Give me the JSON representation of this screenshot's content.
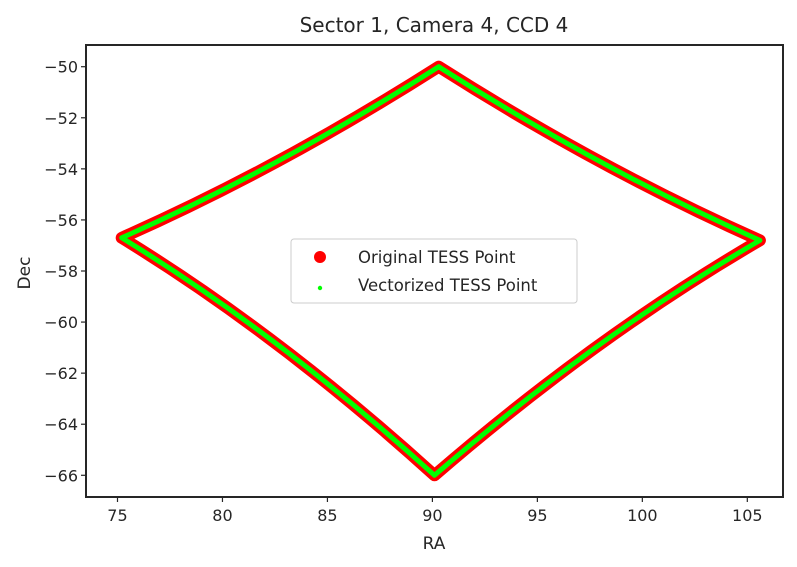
{
  "chart_data": {
    "type": "scatter",
    "title": "Sector 1, Camera 4, CCD 4",
    "xlabel": "RA",
    "ylabel": "Dec",
    "xlim": [
      73.5,
      106.7
    ],
    "ylim": [
      -66.85,
      -49.15
    ],
    "xticks": [
      75,
      80,
      85,
      90,
      95,
      100,
      105
    ],
    "yticks": [
      -50,
      -52,
      -54,
      -56,
      -58,
      -60,
      -62,
      -64,
      -66
    ],
    "xtick_labels": [
      "75",
      "80",
      "85",
      "90",
      "95",
      "100",
      "105"
    ],
    "ytick_labels": [
      "−50",
      "−52",
      "−54",
      "−56",
      "−58",
      "−60",
      "−62",
      "−64",
      "−66"
    ],
    "grid": false,
    "legend_position": "center",
    "series": [
      {
        "name": "Original TESS Point",
        "color": "#ff0000",
        "marker": "large-circle",
        "corners": [
          [
            90.3,
            -50.0
          ],
          [
            105.6,
            -56.8
          ],
          [
            90.1,
            -66.0
          ],
          [
            75.2,
            -56.7
          ]
        ],
        "edge_bulge_dec": [
          0.3,
          0.45,
          0.45,
          0.3
        ]
      },
      {
        "name": "Vectorized TESS Point",
        "color": "#00ff00",
        "marker": "small-circle",
        "corners": [
          [
            90.3,
            -50.0
          ],
          [
            105.6,
            -56.8
          ],
          [
            90.1,
            -66.0
          ],
          [
            75.2,
            -56.7
          ]
        ],
        "edge_bulge_dec": [
          0.3,
          0.45,
          0.45,
          0.3
        ]
      }
    ]
  }
}
